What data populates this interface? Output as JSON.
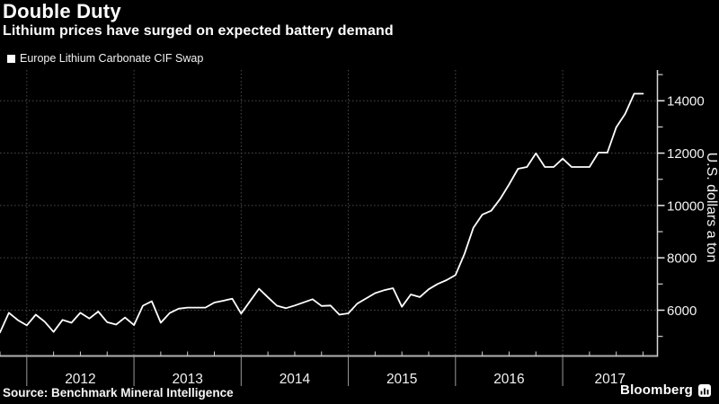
{
  "header": {
    "title": "Double Duty",
    "subtitle": "Lithium prices have surged on expected battery demand"
  },
  "legend": {
    "label": "Europe Lithium Carbonate CIF Swap",
    "marker_color": "#ffffff"
  },
  "footer": {
    "source": "Source: Benchmark Mineral Intelligence",
    "brand": "Bloomberg"
  },
  "chart_data": {
    "type": "line",
    "title": "Double Duty",
    "subtitle": "Lithium prices have surged on expected battery demand",
    "series": [
      {
        "name": "Europe Lithium Carbonate CIF Swap",
        "color": "#ffffff",
        "frequency": "monthly",
        "start_month": "2011-10",
        "end_month": "2017-10",
        "months": [
          "2011-10",
          "2011-11",
          "2011-12",
          "2012-01",
          "2012-02",
          "2012-03",
          "2012-04",
          "2012-05",
          "2012-06",
          "2012-07",
          "2012-08",
          "2012-09",
          "2012-10",
          "2012-11",
          "2012-12",
          "2013-01",
          "2013-02",
          "2013-03",
          "2013-04",
          "2013-05",
          "2013-06",
          "2013-07",
          "2013-08",
          "2013-09",
          "2013-10",
          "2013-11",
          "2013-12",
          "2014-01",
          "2014-02",
          "2014-03",
          "2014-04",
          "2014-05",
          "2014-06",
          "2014-07",
          "2014-08",
          "2014-09",
          "2014-10",
          "2014-11",
          "2014-12",
          "2015-01",
          "2015-02",
          "2015-03",
          "2015-04",
          "2015-05",
          "2015-06",
          "2015-07",
          "2015-08",
          "2015-09",
          "2015-10",
          "2015-11",
          "2015-12",
          "2016-01",
          "2016-02",
          "2016-03",
          "2016-04",
          "2016-05",
          "2016-06",
          "2016-07",
          "2016-08",
          "2016-09",
          "2016-10",
          "2016-11",
          "2016-12",
          "2017-01",
          "2017-02",
          "2017-03",
          "2017-04",
          "2017-05",
          "2017-06",
          "2017-07",
          "2017-08",
          "2017-09",
          "2017-10"
        ],
        "values": [
          5150,
          5900,
          5620,
          5420,
          5830,
          5560,
          5170,
          5630,
          5520,
          5900,
          5680,
          5950,
          5540,
          5450,
          5720,
          5430,
          6170,
          6340,
          5520,
          5890,
          6060,
          6100,
          6100,
          6100,
          6290,
          6360,
          6440,
          5870,
          6350,
          6820,
          6490,
          6170,
          6075,
          6180,
          6300,
          6420,
          6160,
          6180,
          5830,
          5880,
          6250,
          6450,
          6650,
          6760,
          6840,
          6130,
          6600,
          6500,
          6800,
          7000,
          7150,
          7340,
          8150,
          9150,
          9650,
          9800,
          10250,
          10800,
          11400,
          11470,
          11990,
          11470,
          11470,
          11790,
          11470,
          11470,
          11470,
          12020,
          12020,
          12990,
          13500,
          14270,
          14270
        ]
      }
    ],
    "ylabel": "U.S. dollars a ton",
    "xlabel": "",
    "y_axis_side": "right",
    "y_ticks_labeled": [
      6000,
      8000,
      10000,
      12000,
      14000
    ],
    "y_ticks_minor": [
      5000,
      7000,
      9000,
      11000,
      13000,
      15000
    ],
    "ylim_displayed": [
      4300,
      15200
    ],
    "x_year_labels": [
      "2012",
      "2013",
      "2014",
      "2015",
      "2016",
      "2017"
    ],
    "grid": "dotted",
    "grid_color": "#4c4c4c",
    "background": "#000000",
    "legend_position": "top-left"
  }
}
